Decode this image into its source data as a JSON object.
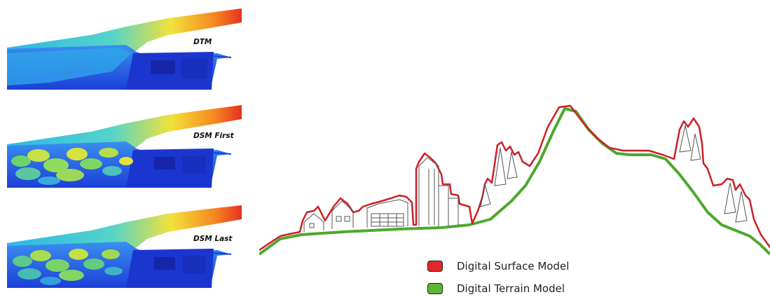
{
  "panels": [
    {
      "label": "DTM",
      "variant": "bare"
    },
    {
      "label": "DSM First",
      "variant": "canopy"
    },
    {
      "label": "DSM Last",
      "variant": "canopy"
    }
  ],
  "legend": [
    {
      "label": "Digital Surface Model",
      "color": "#e2272b"
    },
    {
      "label": "Digital Terrain Model",
      "color": "#5bb832"
    }
  ],
  "colors": {
    "surface": "#cc1f26",
    "terrain": "#4ea82e",
    "lidar_low": "#1f3fd6",
    "lidar_mid": "#2fb6e8",
    "lidar_high": "#f2e23a",
    "lidar_peak": "#e6321e"
  }
}
